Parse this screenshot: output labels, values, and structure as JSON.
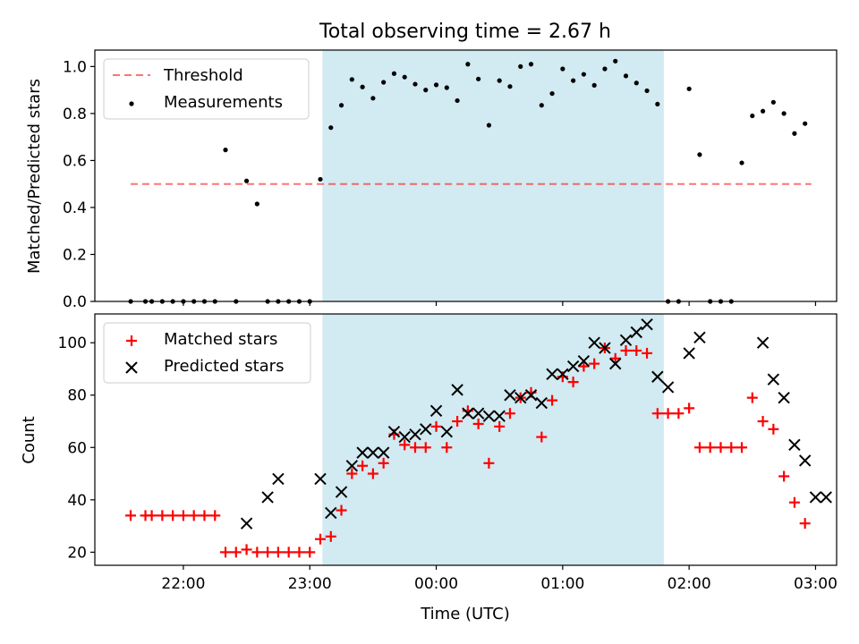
{
  "title": "Total observing time = 2.67 h",
  "colors": {
    "shade": "#add8e6",
    "threshold": "#ff0000",
    "matched": "#ff0000",
    "predicted": "#000000",
    "measurements": "#000000"
  },
  "chart_data": [
    {
      "type": "scatter",
      "title": "Total observing time = 2.67 h",
      "xlabel": "",
      "ylabel": "Matched/Predicted stars",
      "xlim": [
        "21:18",
        "03:10"
      ],
      "ylim": [
        0,
        1.07
      ],
      "yticks": [
        "0.0",
        "0.2",
        "0.4",
        "0.6",
        "0.8",
        "1.0"
      ],
      "shaded_interval": [
        "23:06",
        "01:48"
      ],
      "legend_position": "upper-left",
      "threshold": {
        "name": "Threshold",
        "y": 0.5,
        "x": [
          "21:35",
          "02:58"
        ]
      },
      "series": [
        {
          "name": "Measurements",
          "x": [
            "21:35",
            "21:42",
            "21:45",
            "21:50",
            "21:55",
            "22:00",
            "22:05",
            "22:10",
            "22:15",
            "22:20",
            "22:25",
            "22:30",
            "22:35",
            "22:40",
            "22:45",
            "22:50",
            "22:55",
            "23:00",
            "23:05",
            "23:10",
            "23:15",
            "23:20",
            "23:25",
            "23:30",
            "23:35",
            "23:40",
            "23:45",
            "23:50",
            "23:55",
            "00:00",
            "00:05",
            "00:10",
            "00:15",
            "00:20",
            "00:25",
            "00:30",
            "00:35",
            "00:40",
            "00:45",
            "00:50",
            "00:55",
            "01:00",
            "01:05",
            "01:10",
            "01:15",
            "01:20",
            "01:25",
            "01:30",
            "01:35",
            "01:40",
            "01:45",
            "01:50",
            "01:55",
            "02:00",
            "02:05",
            "02:10",
            "02:15",
            "02:20",
            "02:25",
            "02:30",
            "02:35",
            "02:40",
            "02:45",
            "02:50",
            "02:55"
          ],
          "y": [
            0,
            0,
            0,
            0,
            0,
            0,
            0,
            0,
            0,
            0.645,
            0,
            0.513,
            0.415,
            0,
            0,
            0,
            0,
            0,
            0.52,
            0.74,
            0.835,
            0.945,
            0.913,
            0.865,
            0.933,
            0.97,
            0.955,
            0.925,
            0.9,
            0.922,
            0.91,
            0.855,
            1.01,
            0.947,
            0.75,
            0.94,
            0.915,
            1.0,
            1.01,
            0.835,
            0.885,
            0.99,
            0.94,
            0.967,
            0.92,
            0.99,
            1.023,
            0.96,
            0.93,
            0.897,
            0.84,
            0,
            0,
            0.905,
            0.625,
            0,
            0,
            0,
            0.59,
            0.79,
            0.81,
            0.848,
            0.8,
            0.715,
            0.757
          ]
        }
      ]
    },
    {
      "type": "scatter",
      "xlabel": "Time (UTC)",
      "ylabel": "Count",
      "xlim": [
        "21:18",
        "03:10"
      ],
      "ylim": [
        15,
        111
      ],
      "xticks": [
        "22:00",
        "23:00",
        "00:00",
        "01:00",
        "02:00",
        "03:00"
      ],
      "yticks": [
        "20",
        "40",
        "60",
        "80",
        "100"
      ],
      "shaded_interval": [
        "23:06",
        "01:48"
      ],
      "legend_position": "upper-left",
      "series": [
        {
          "name": "Matched stars",
          "marker": "plus",
          "x": [
            "21:35",
            "21:42",
            "21:45",
            "21:50",
            "21:55",
            "22:00",
            "22:05",
            "22:10",
            "22:15",
            "22:20",
            "22:25",
            "22:30",
            "22:35",
            "22:40",
            "22:45",
            "22:50",
            "22:55",
            "23:00",
            "23:05",
            "23:10",
            "23:15",
            "23:20",
            "23:25",
            "23:30",
            "23:35",
            "23:40",
            "23:45",
            "23:50",
            "23:55",
            "00:00",
            "00:05",
            "00:10",
            "00:15",
            "00:20",
            "00:25",
            "00:30",
            "00:35",
            "00:40",
            "00:45",
            "00:50",
            "00:55",
            "01:00",
            "01:05",
            "01:10",
            "01:15",
            "01:20",
            "01:25",
            "01:30",
            "01:35",
            "01:40",
            "01:45",
            "01:50",
            "01:55",
            "02:00",
            "02:05",
            "02:10",
            "02:15",
            "02:20",
            "02:25",
            "02:30",
            "02:35",
            "02:40",
            "02:45",
            "02:50",
            "02:55"
          ],
          "y": [
            34,
            34,
            34,
            34,
            34,
            34,
            34,
            34,
            34,
            20,
            20,
            21,
            20,
            20,
            20,
            20,
            20,
            20,
            25,
            26,
            36,
            50,
            53,
            50,
            54,
            65,
            61,
            60,
            60,
            68,
            60,
            70,
            74,
            69,
            54,
            68,
            73,
            79,
            81,
            64,
            78,
            87,
            85,
            91,
            92,
            98,
            94,
            97,
            97,
            96,
            73,
            73,
            73,
            75,
            60,
            60,
            60,
            60,
            60,
            79,
            70,
            67,
            49,
            39,
            31
          ]
        },
        {
          "name": "Predicted stars",
          "marker": "x",
          "x": [
            "22:30",
            "22:40",
            "22:45",
            "23:05",
            "23:10",
            "23:15",
            "23:20",
            "23:25",
            "23:30",
            "23:35",
            "23:40",
            "23:45",
            "23:50",
            "23:55",
            "00:00",
            "00:05",
            "00:10",
            "00:15",
            "00:20",
            "00:25",
            "00:30",
            "00:35",
            "00:40",
            "00:45",
            "00:50",
            "00:55",
            "01:00",
            "01:05",
            "01:10",
            "01:15",
            "01:20",
            "01:25",
            "01:30",
            "01:35",
            "01:40",
            "01:45",
            "01:50",
            "02:00",
            "02:05",
            "02:35",
            "02:40",
            "02:45",
            "02:50",
            "02:55",
            "03:00",
            "03:05"
          ],
          "y": [
            31,
            41,
            48,
            48,
            35,
            43,
            53,
            58,
            58,
            58,
            66,
            64,
            65,
            67,
            74,
            66,
            82,
            73,
            73,
            72,
            72,
            80,
            79,
            80,
            77,
            88,
            88,
            91,
            93,
            100,
            98,
            92,
            101,
            104,
            107,
            87,
            83,
            96,
            102,
            100,
            86,
            79,
            61,
            55,
            41,
            41
          ]
        }
      ]
    }
  ]
}
